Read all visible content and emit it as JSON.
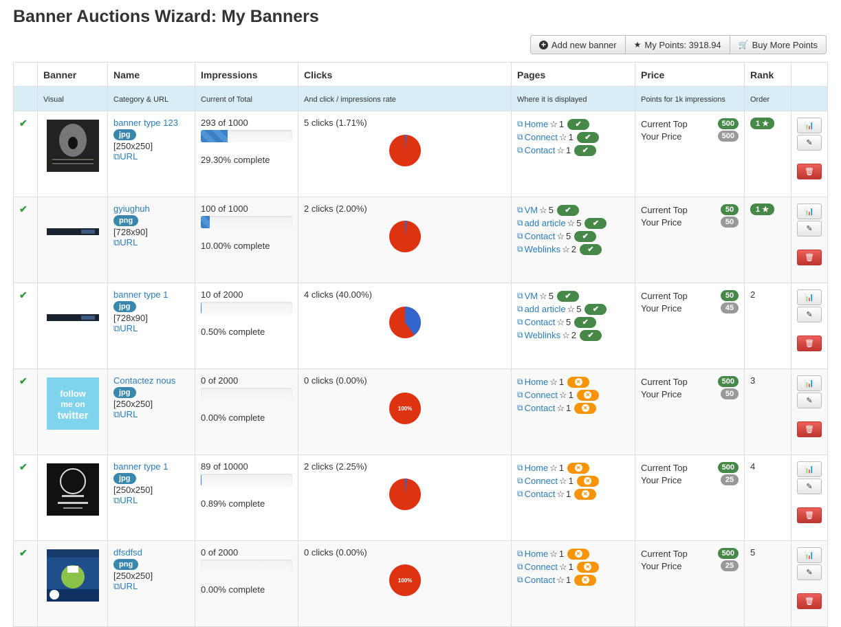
{
  "title": "Banner Auctions Wizard: My Banners",
  "toolbar": {
    "add": "Add new banner",
    "points": "My Points: 3918.94",
    "buy": "Buy More Points"
  },
  "headers": [
    "Banner",
    "Name",
    "Impressions",
    "Clicks",
    "Pages",
    "Price",
    "Rank"
  ],
  "subheaders": [
    "Visual",
    "Category & URL",
    "Current of Total",
    "And click / impressions rate",
    "Where it is displayed",
    "Points for 1k impressions",
    "Order"
  ],
  "labels": {
    "url": "URL",
    "complete": "complete",
    "current_top": "Current Top",
    "your_price": "Your Price"
  },
  "rows": [
    {
      "name": "banner type 123",
      "type": "jpg",
      "size": "[250x250]",
      "impr": "293 of 1000",
      "pct": 29.3,
      "pct_text": "29.30% complete",
      "clicks": "5 clicks (1.71%)",
      "rate": 1.71,
      "pages": [
        {
          "n": "Home",
          "s": "1",
          "ok": true
        },
        {
          "n": "Connect",
          "s": "1",
          "ok": true
        },
        {
          "n": "Contact",
          "s": "1",
          "ok": true
        }
      ],
      "top": "500",
      "price": "500",
      "rank": "1",
      "rank_badge": true
    },
    {
      "name": "gyiughuh",
      "type": "png",
      "size": "[728x90]",
      "impr": "100 of 1000",
      "pct": 10,
      "pct_text": "10.00% complete",
      "clicks": "2 clicks (2.00%)",
      "rate": 2,
      "pages": [
        {
          "n": "VM",
          "s": "5",
          "ok": true
        },
        {
          "n": "add article",
          "s": "5",
          "ok": true
        },
        {
          "n": "Contact",
          "s": "5",
          "ok": true
        },
        {
          "n": "Weblinks",
          "s": "2",
          "ok": true
        }
      ],
      "top": "50",
      "price": "50",
      "rank": "1",
      "rank_badge": true
    },
    {
      "name": "banner type 1",
      "type": "jpg",
      "size": "[728x90]",
      "impr": "10 of 2000",
      "pct": 0.5,
      "pct_text": "0.50% complete",
      "clicks": "4 clicks (40.00%)",
      "rate": 40,
      "pages": [
        {
          "n": "VM",
          "s": "5",
          "ok": true
        },
        {
          "n": "add article",
          "s": "5",
          "ok": true
        },
        {
          "n": "Contact",
          "s": "5",
          "ok": true
        },
        {
          "n": "Weblinks",
          "s": "2",
          "ok": true
        }
      ],
      "top": "50",
      "price": "45",
      "rank": "2",
      "rank_badge": false
    },
    {
      "name": "Contactez nous",
      "type": "jpg",
      "size": "[250x250]",
      "impr": "0 of 2000",
      "pct": 0,
      "pct_text": "0.00% complete",
      "clicks": "0 clicks (0.00%)",
      "rate": 0,
      "pie_label": "100%",
      "pages": [
        {
          "n": "Home",
          "s": "1",
          "ok": false
        },
        {
          "n": "Connect",
          "s": "1",
          "ok": false
        },
        {
          "n": "Contact",
          "s": "1",
          "ok": false
        }
      ],
      "top": "500",
      "price": "50",
      "rank": "3",
      "rank_badge": false
    },
    {
      "name": "banner type 1",
      "type": "jpg",
      "size": "[250x250]",
      "impr": "89 of 10000",
      "pct": 0.89,
      "pct_text": "0.89% complete",
      "clicks": "2 clicks (2.25%)",
      "rate": 2.25,
      "pages": [
        {
          "n": "Home",
          "s": "1",
          "ok": false
        },
        {
          "n": "Connect",
          "s": "1",
          "ok": false
        },
        {
          "n": "Contact",
          "s": "1",
          "ok": false
        }
      ],
      "top": "500",
      "price": "25",
      "rank": "4",
      "rank_badge": false
    },
    {
      "name": "dfsdfsd",
      "type": "png",
      "size": "[250x250]",
      "impr": "0 of 2000",
      "pct": 0,
      "pct_text": "0.00% complete",
      "clicks": "0 clicks (0.00%)",
      "rate": 0,
      "pie_label": "100%",
      "pages": [
        {
          "n": "Home",
          "s": "1",
          "ok": false
        },
        {
          "n": "Connect",
          "s": "1",
          "ok": false
        },
        {
          "n": "Contact",
          "s": "1",
          "ok": false
        }
      ],
      "top": "500",
      "price": "25",
      "rank": "5",
      "rank_badge": false
    }
  ],
  "thumbs": [
    "ulysses-banner",
    "dark-wide-banner",
    "dark-wide-banner",
    "follow-me-on-twitter",
    "horror-picture-tea",
    "website-monitoring"
  ],
  "colors": {
    "pie_red": "#dd3311",
    "pie_blue": "#3366cc",
    "ok_green": "#468847",
    "warn_orange": "#f89406"
  }
}
